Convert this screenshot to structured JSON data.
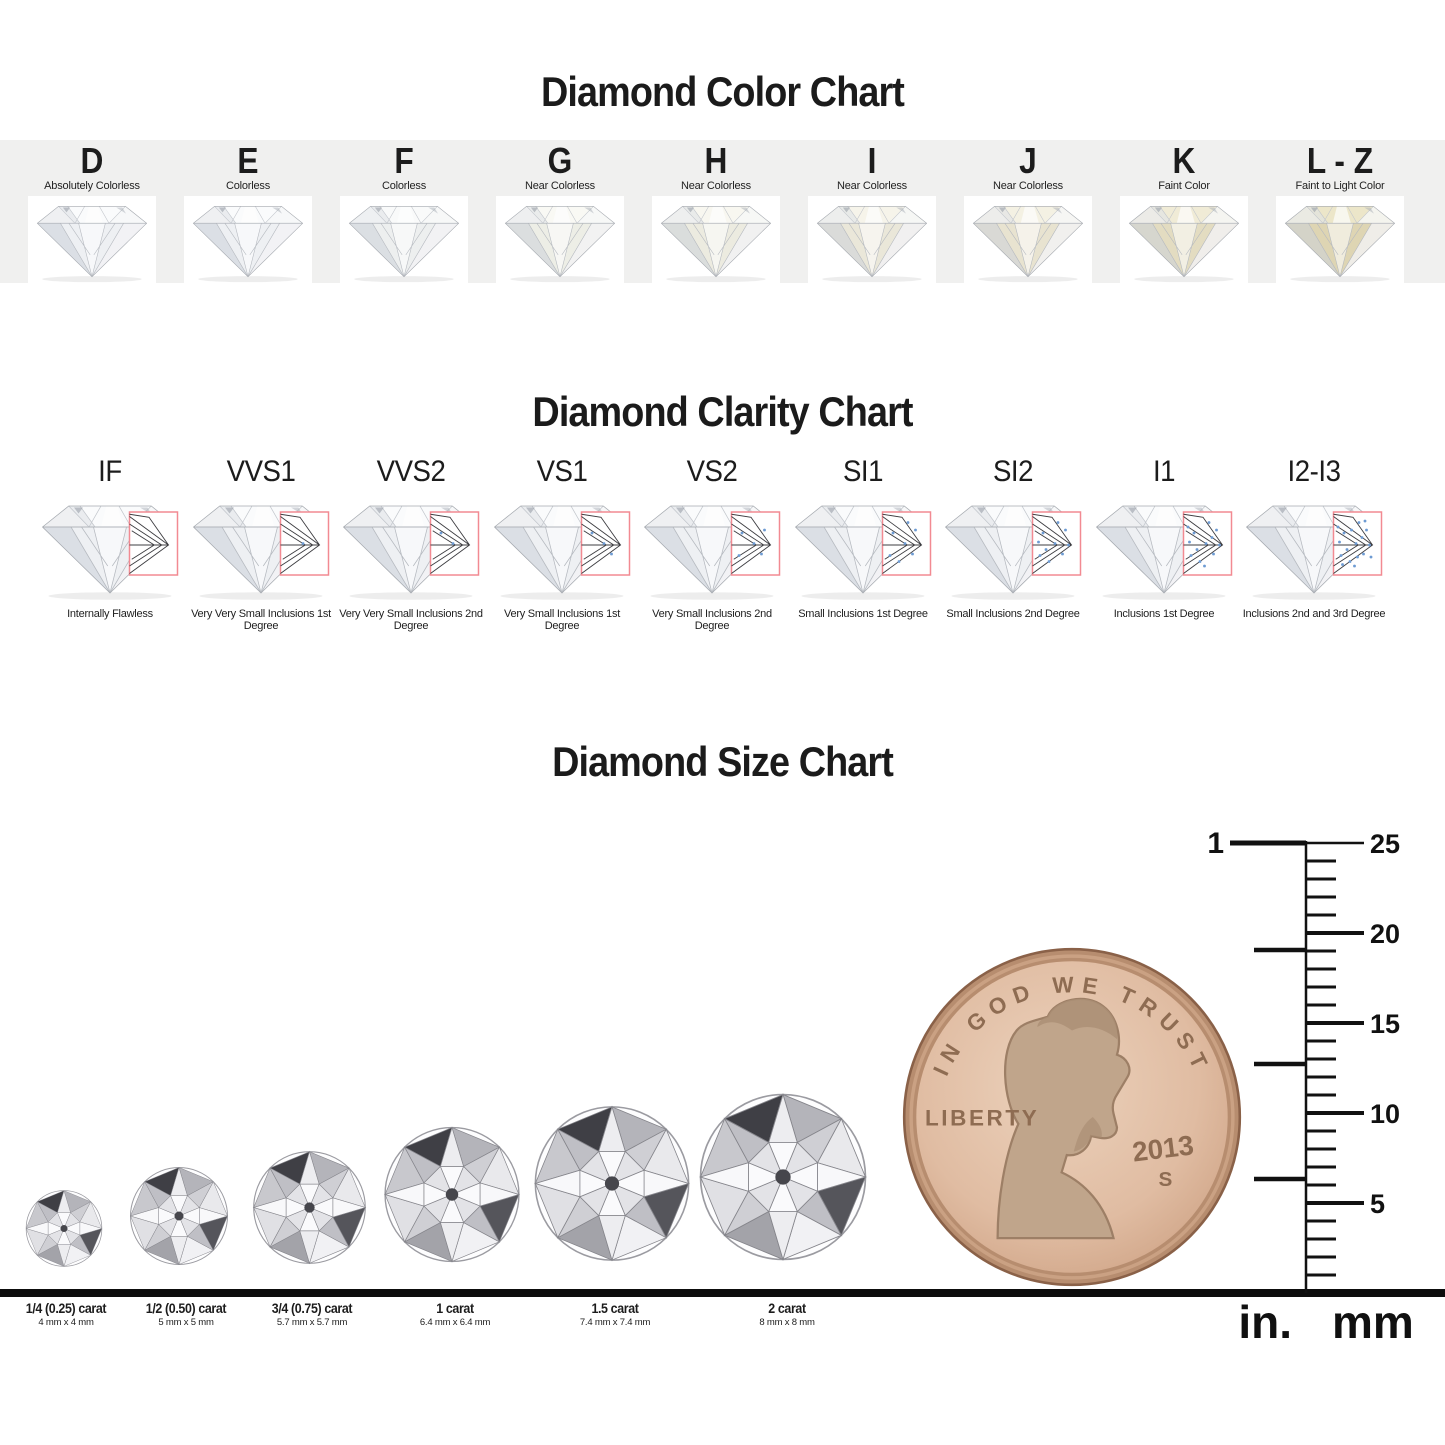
{
  "color_chart": {
    "title": "Diamond Color Chart",
    "band_bg": "#f0f0ef",
    "grades": [
      {
        "grade": "D",
        "desc": "Absolutely Colorless",
        "crown": "#fafbfc",
        "pavilion": "#eef0f3"
      },
      {
        "grade": "E",
        "desc": "Colorless",
        "crown": "#fafbfc",
        "pavilion": "#eef0f3"
      },
      {
        "grade": "F",
        "desc": "Colorless",
        "crown": "#f9fafa",
        "pavilion": "#edefef"
      },
      {
        "grade": "G",
        "desc": "Near Colorless",
        "crown": "#f9f9f4",
        "pavilion": "#edeee6"
      },
      {
        "grade": "H",
        "desc": "Near Colorless",
        "crown": "#f8f7f0",
        "pavilion": "#ecebe0"
      },
      {
        "grade": "I",
        "desc": "Near Colorless",
        "crown": "#f6f4ea",
        "pavilion": "#eae7d9"
      },
      {
        "grade": "J",
        "desc": "Near Colorless",
        "crown": "#f4f1e3",
        "pavilion": "#e8e3d0"
      },
      {
        "grade": "K",
        "desc": "Faint Color",
        "crown": "#f0ebd6",
        "pavilion": "#e3dcc1"
      },
      {
        "grade": "L - Z",
        "desc": "Faint to Light Color",
        "crown": "#ece6c9",
        "pavilion": "#ded5b3"
      }
    ]
  },
  "clarity_chart": {
    "title": "Diamond Clarity Chart",
    "box_color": "#f28a92",
    "inclusion_dot_color": "#6d9bd3",
    "grades": [
      {
        "grade": "IF",
        "desc": "Internally Flawless",
        "inclusions": 0
      },
      {
        "grade": "VVS1",
        "desc": "Very Very Small Inclusions 1st Degree",
        "inclusions": 1
      },
      {
        "grade": "VVS2",
        "desc": "Very Very Small Inclusions 2nd Degree",
        "inclusions": 2
      },
      {
        "grade": "VS1",
        "desc": "Very Small Inclusions 1st Degree",
        "inclusions": 3
      },
      {
        "grade": "VS2",
        "desc": "Very Small Inclusions 2nd Degree",
        "inclusions": 5
      },
      {
        "grade": "SI1",
        "desc": "Small Inclusions 1st Degree",
        "inclusions": 7
      },
      {
        "grade": "SI2",
        "desc": "Small Inclusions 2nd Degree",
        "inclusions": 10
      },
      {
        "grade": "I1",
        "desc": "Inclusions 1st Degree",
        "inclusions": 13
      },
      {
        "grade": "I2-I3",
        "desc": "Inclusions 2nd and 3rd Degree",
        "inclusions": 18
      }
    ]
  },
  "size_chart": {
    "title": "Diamond Size Chart",
    "sizes": [
      {
        "carat": "1/4 (0.25) carat",
        "mm": "4 mm x 4 mm"
      },
      {
        "carat": "1/2 (0.50) carat",
        "mm": "5 mm x 5 mm"
      },
      {
        "carat": "3/4 (0.75) carat",
        "mm": "5.7 mm x 5.7 mm"
      },
      {
        "carat": "1 carat",
        "mm": "6.4 mm x 6.4 mm"
      },
      {
        "carat": "1.5 carat",
        "mm": "7.4 mm x 7.4 mm"
      },
      {
        "carat": "2 carat",
        "mm": "8 mm x 8 mm"
      }
    ],
    "penny": {
      "motto": "IN GOD WE TRUST",
      "liberty": "LIBERTY",
      "year": "2013",
      "mint_mark": "S"
    },
    "ruler": {
      "inch_label": "1",
      "mm_labels": [
        "25",
        "20",
        "15",
        "10",
        "5"
      ],
      "unit_left": "in.",
      "unit_right": "mm"
    }
  }
}
